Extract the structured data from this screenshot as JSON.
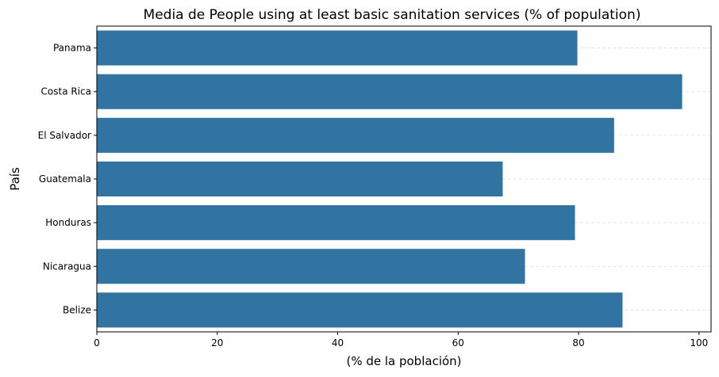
{
  "chart_data": {
    "type": "bar",
    "orientation": "horizontal",
    "title": "Media de People using at least basic sanitation services (% of population)",
    "xlabel": "(% de la población)",
    "ylabel": "País",
    "categories": [
      "Panama",
      "Costa Rica",
      "El Salvador",
      "Guatemala",
      "Honduras",
      "Nicaragua",
      "Belize"
    ],
    "values": [
      79.8,
      97.2,
      85.9,
      67.4,
      79.4,
      71.1,
      87.3
    ],
    "xlim": [
      0,
      102
    ],
    "xticks": [
      0,
      20,
      40,
      60,
      80,
      100
    ],
    "grid": "horizontal dashed",
    "bar_color": "#3274a1",
    "grid_color": "#dddddd"
  }
}
